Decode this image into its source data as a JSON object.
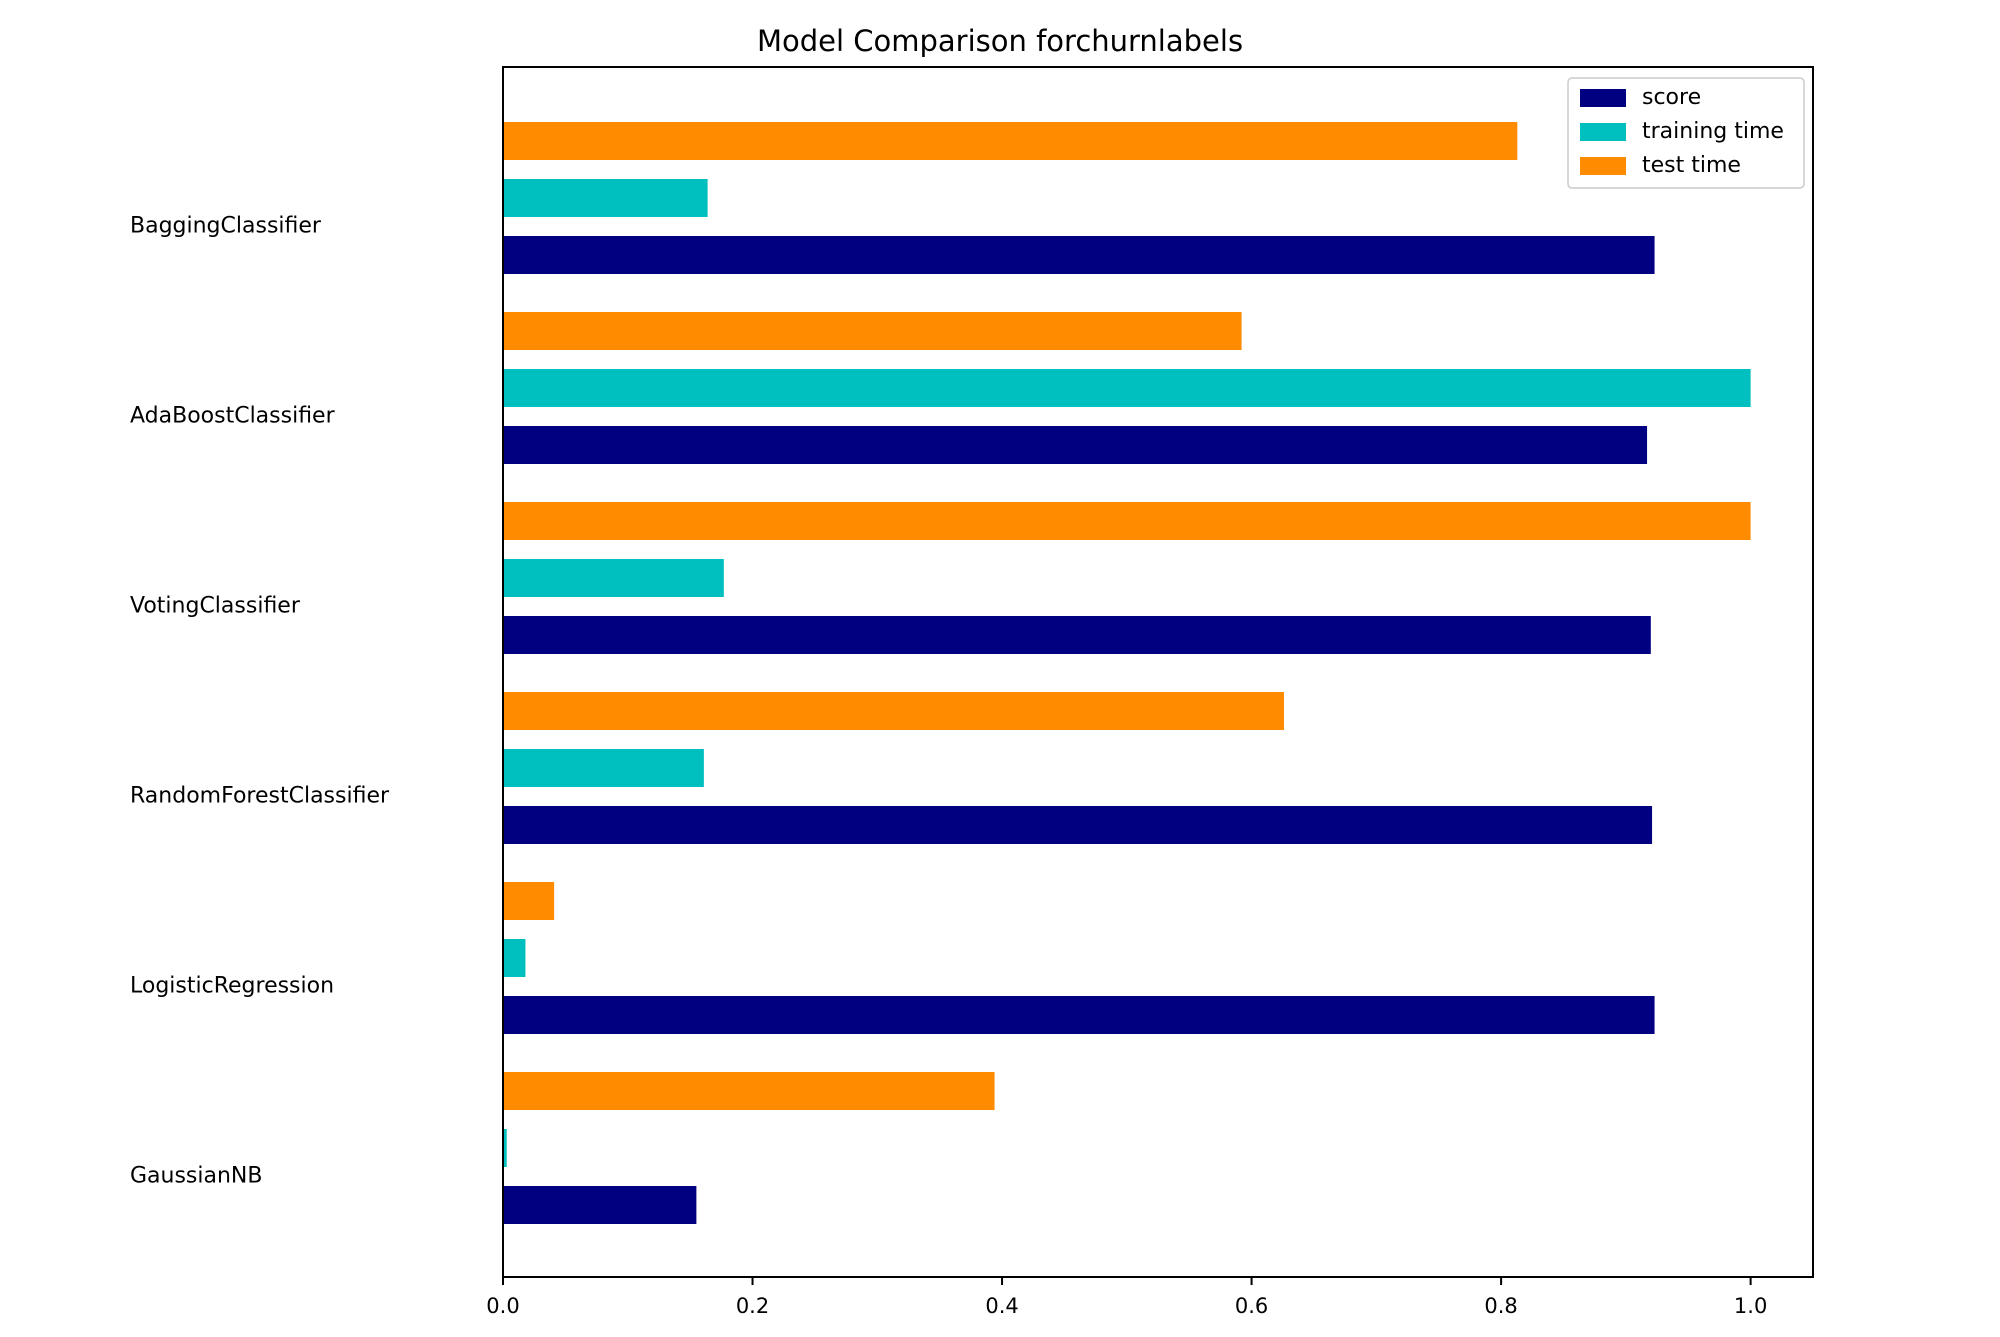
{
  "chart_data": {
    "type": "bar",
    "orientation": "horizontal",
    "title": "Model Comparison forchurnlabels",
    "xlabel": "",
    "ylabel": "",
    "xlim": [
      0.0,
      1.05
    ],
    "xticks": [
      0.0,
      0.2,
      0.4,
      0.6,
      0.8,
      1.0
    ],
    "xtick_labels": [
      "0.0",
      "0.2",
      "0.4",
      "0.6",
      "0.8",
      "1.0"
    ],
    "grid": false,
    "legend_position": "top-right",
    "categories": [
      "BaggingClassifier",
      "AdaBoostClassifier",
      "VotingClassifier",
      "RandomForestClassifier",
      "LogisticRegression",
      "GaussianNB"
    ],
    "series": [
      {
        "name": "score",
        "color": "#000080",
        "values": [
          0.923,
          0.917,
          0.92,
          0.921,
          0.923,
          0.155
        ]
      },
      {
        "name": "training time",
        "color": "#00bfbf",
        "values": [
          0.164,
          1.0,
          0.177,
          0.161,
          0.018,
          0.003
        ]
      },
      {
        "name": "test time",
        "color": "#ff8c00",
        "values": [
          0.813,
          0.592,
          1.0,
          0.626,
          0.041,
          0.394
        ]
      }
    ]
  }
}
